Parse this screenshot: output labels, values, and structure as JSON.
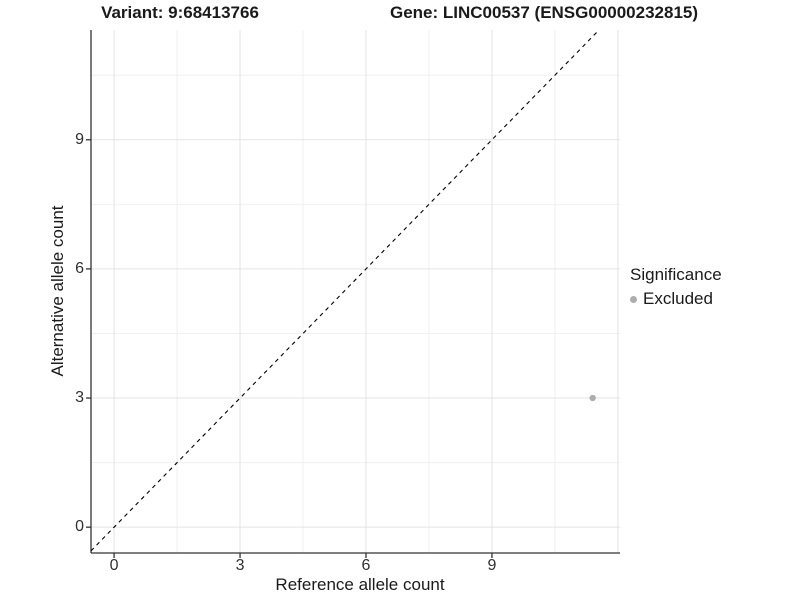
{
  "titles": {
    "variant": "Variant: 9:68413766",
    "gene": "Gene: LINC00537 (ENSG00000232815)"
  },
  "legend": {
    "title": "Significance",
    "items": [
      {
        "label": "Excluded",
        "color": "#adadad"
      }
    ]
  },
  "chart_data": {
    "type": "scatter",
    "title": "Variant: 9:68413766   Gene: LINC00537 (ENSG00000232815)",
    "xlabel": "Reference allele count",
    "ylabel": "Alternative allele count",
    "xlim": [
      -0.55,
      12.05
    ],
    "ylim": [
      -0.6,
      11.55
    ],
    "xticks": [
      0,
      3,
      6,
      9
    ],
    "yticks": [
      0,
      3,
      6,
      9
    ],
    "xgrid_major": [
      0,
      3,
      6,
      9,
      12
    ],
    "ygrid_major": [
      0,
      3,
      6,
      9
    ],
    "xgrid_minor": [
      1.5,
      4.5,
      7.5,
      10.5
    ],
    "ygrid_minor": [
      1.5,
      4.5,
      7.5,
      10.5
    ],
    "grid_major_color": "#e3e3e3",
    "grid_minor_color": "#f0f0f0",
    "axis_line_color": "#333333",
    "series": [
      {
        "name": "Excluded",
        "color": "#adadad",
        "points": [
          {
            "x": 11.4,
            "y": 3
          }
        ]
      }
    ],
    "identity_line": {
      "label": "y = x",
      "style": "dashed",
      "color": "#000000"
    },
    "legend_position": "right",
    "legend_title": "Significance"
  }
}
